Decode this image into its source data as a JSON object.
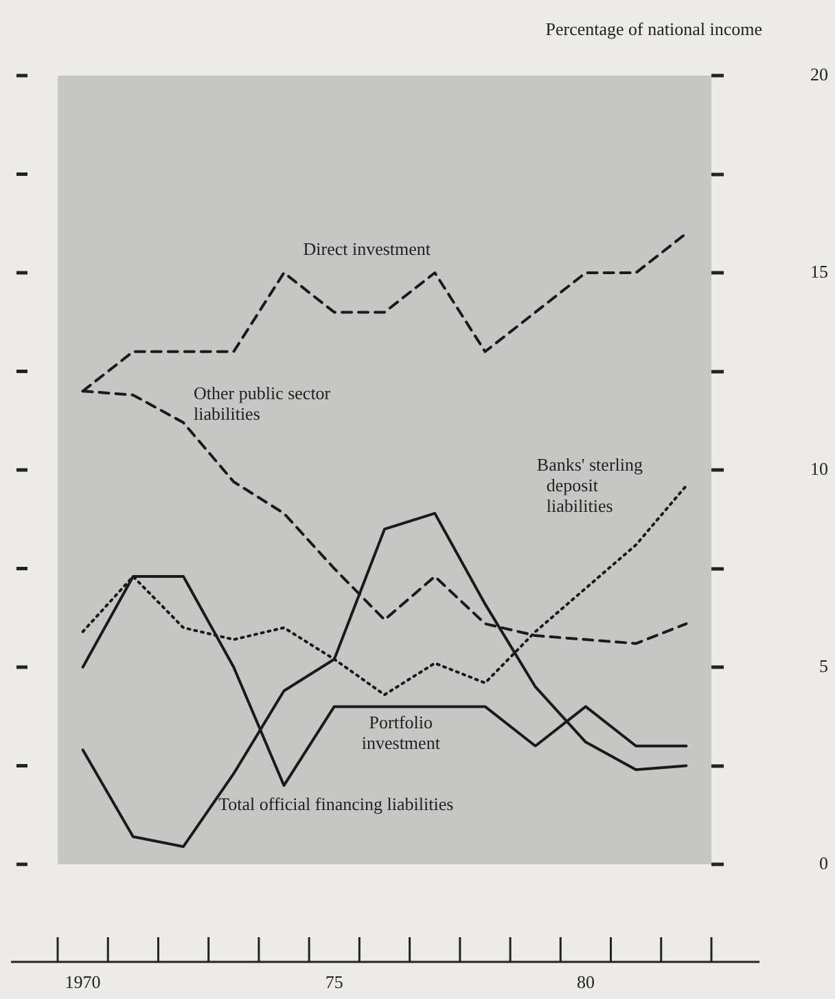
{
  "chart_data": {
    "type": "line",
    "ylabel": "Percentage of national income",
    "categories": [
      "1970",
      null,
      null,
      null,
      null,
      "75",
      null,
      null,
      null,
      null,
      "80",
      null,
      null
    ],
    "series": [
      {
        "name": "Direct investment",
        "color": "#1a1a1a",
        "line_style": "dashed",
        "values": [
          12,
          13,
          13,
          13,
          15,
          14,
          14,
          15,
          13,
          14,
          15,
          15,
          16
        ]
      },
      {
        "name": "Other public sector liabilities",
        "color": "#1a1a1a",
        "line_style": "dashed",
        "values": [
          12,
          11.9,
          11.2,
          9.7,
          8.9,
          7.5,
          6.2,
          7.3,
          6.1,
          5.8,
          5.7,
          5.6,
          6.1
        ]
      },
      {
        "name": "Banks' sterling deposit liabilities",
        "color": "#1a1a1a",
        "line_style": "dotted",
        "values": [
          5.9,
          7.3,
          6,
          5.7,
          6,
          5.2,
          4.3,
          5.1,
          4.6,
          5.9,
          7,
          8.1,
          9.6
        ]
      },
      {
        "name": "Portfolio investment",
        "color": "#1a1a1a",
        "line_style": "solid",
        "values": [
          5,
          7.3,
          7.3,
          5,
          2,
          4,
          4,
          4,
          4,
          3,
          4,
          3,
          3
        ]
      },
      {
        "name": "Total official financing liabilities",
        "color": "#1a1a1a",
        "line_style": "solid",
        "values": [
          2.9,
          0.7,
          0.45,
          2.3,
          4.4,
          5.2,
          8.5,
          8.9,
          6.6,
          4.5,
          3.1,
          2.4,
          2.5
        ]
      }
    ],
    "ylim": [
      0,
      20
    ],
    "yticks": [
      0,
      {
        "value": 2.5,
        "label": null
      },
      5,
      {
        "value": 7.5,
        "label": null
      },
      10,
      {
        "value": 12.5,
        "label": null
      },
      15,
      {
        "value": 17.5,
        "label": null
      },
      20
    ],
    "marker": "none"
  }
}
